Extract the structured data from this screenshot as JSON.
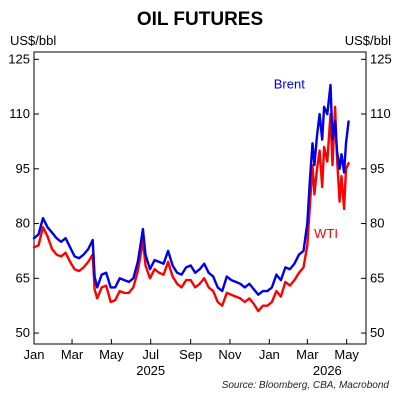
{
  "chart_data": {
    "type": "line",
    "title": "OIL FUTURES",
    "ylabel_left": "US$/bbl",
    "ylabel_right": "US$/bbl",
    "ylim": [
      47,
      127
    ],
    "yticks": [
      50,
      65,
      80,
      95,
      110,
      125
    ],
    "xlim": [
      "2025-01-01",
      "2026-05-31"
    ],
    "x_tick_labels": [
      "Jan",
      "Mar",
      "May",
      "Jul",
      "Sep",
      "Nov",
      "Jan",
      "Mar",
      "May"
    ],
    "x_tick_dates": [
      "2025-01-01",
      "2025-03-01",
      "2025-05-01",
      "2025-07-01",
      "2025-09-01",
      "2025-11-01",
      "2026-01-01",
      "2026-03-01",
      "2026-05-01"
    ],
    "year_labels": [
      {
        "text": "2025",
        "at": "2025-07-01"
      },
      {
        "text": "2026",
        "at": "2026-04-01"
      }
    ],
    "grid": false,
    "source": "Source: Bloomberg, CBA, Macrobond",
    "series": [
      {
        "name": "Brent",
        "color": "#0000e6",
        "points": [
          [
            "2025-01-01",
            76
          ],
          [
            "2025-01-08",
            77
          ],
          [
            "2025-01-15",
            81.5
          ],
          [
            "2025-01-22",
            79
          ],
          [
            "2025-01-29",
            77.5
          ],
          [
            "2025-02-05",
            76
          ],
          [
            "2025-02-12",
            75
          ],
          [
            "2025-02-19",
            76
          ],
          [
            "2025-02-26",
            73.5
          ],
          [
            "2025-03-05",
            71
          ],
          [
            "2025-03-12",
            70.5
          ],
          [
            "2025-03-19",
            71.5
          ],
          [
            "2025-03-26",
            73
          ],
          [
            "2025-04-02",
            75.5
          ],
          [
            "2025-04-05",
            65.5
          ],
          [
            "2025-04-09",
            62.5
          ],
          [
            "2025-04-16",
            66
          ],
          [
            "2025-04-23",
            66.5
          ],
          [
            "2025-04-30",
            62.5
          ],
          [
            "2025-05-07",
            62.5
          ],
          [
            "2025-05-14",
            65
          ],
          [
            "2025-05-21",
            64.5
          ],
          [
            "2025-05-28",
            64
          ],
          [
            "2025-06-04",
            65
          ],
          [
            "2025-06-11",
            69.5
          ],
          [
            "2025-06-16",
            75
          ],
          [
            "2025-06-19",
            78.5
          ],
          [
            "2025-06-23",
            71.5
          ],
          [
            "2025-06-30",
            67.5
          ],
          [
            "2025-07-07",
            70
          ],
          [
            "2025-07-14",
            69.5
          ],
          [
            "2025-07-21",
            69
          ],
          [
            "2025-07-28",
            72.5
          ],
          [
            "2025-08-04",
            68.5
          ],
          [
            "2025-08-11",
            66.5
          ],
          [
            "2025-08-18",
            66
          ],
          [
            "2025-08-25",
            68
          ],
          [
            "2025-09-01",
            68.5
          ],
          [
            "2025-09-08",
            66.5
          ],
          [
            "2025-09-15",
            67.5
          ],
          [
            "2025-09-22",
            69
          ],
          [
            "2025-09-29",
            66.5
          ],
          [
            "2025-10-06",
            65.5
          ],
          [
            "2025-10-13",
            62.5
          ],
          [
            "2025-10-20",
            61.5
          ],
          [
            "2025-10-27",
            65.5
          ],
          [
            "2025-11-03",
            64.5
          ],
          [
            "2025-11-10",
            64
          ],
          [
            "2025-11-17",
            63.5
          ],
          [
            "2025-11-24",
            62.5
          ],
          [
            "2025-12-01",
            63.5
          ],
          [
            "2025-12-08",
            62
          ],
          [
            "2025-12-15",
            60.5
          ],
          [
            "2025-12-22",
            61.5
          ],
          [
            "2025-12-29",
            61.5
          ],
          [
            "2026-01-05",
            62.5
          ],
          [
            "2026-01-12",
            66
          ],
          [
            "2026-01-19",
            64.5
          ],
          [
            "2026-01-26",
            68
          ],
          [
            "2026-02-02",
            67.5
          ],
          [
            "2026-02-09",
            69
          ],
          [
            "2026-02-16",
            71.5
          ],
          [
            "2026-02-23",
            72.5
          ],
          [
            "2026-03-01",
            80
          ],
          [
            "2026-03-05",
            92
          ],
          [
            "2026-03-09",
            102
          ],
          [
            "2026-03-12",
            96
          ],
          [
            "2026-03-16",
            104
          ],
          [
            "2026-03-20",
            110
          ],
          [
            "2026-03-24",
            103
          ],
          [
            "2026-03-27",
            112
          ],
          [
            "2026-04-01",
            110
          ],
          [
            "2026-04-06",
            118
          ],
          [
            "2026-04-09",
            103
          ],
          [
            "2026-04-13",
            108
          ],
          [
            "2026-04-16",
            100
          ],
          [
            "2026-04-20",
            95
          ],
          [
            "2026-04-23",
            99
          ],
          [
            "2026-04-27",
            94
          ],
          [
            "2026-04-30",
            102
          ],
          [
            "2026-05-04",
            108
          ]
        ]
      },
      {
        "name": "WTI",
        "color": "#ff0000",
        "points": [
          [
            "2025-01-01",
            73.5
          ],
          [
            "2025-01-08",
            74
          ],
          [
            "2025-01-15",
            79
          ],
          [
            "2025-01-22",
            76.5
          ],
          [
            "2025-01-29",
            73
          ],
          [
            "2025-02-05",
            71.5
          ],
          [
            "2025-02-12",
            71
          ],
          [
            "2025-02-19",
            72
          ],
          [
            "2025-02-26",
            69.5
          ],
          [
            "2025-03-05",
            67.5
          ],
          [
            "2025-03-12",
            67
          ],
          [
            "2025-03-19",
            68
          ],
          [
            "2025-03-26",
            69.5
          ],
          [
            "2025-04-02",
            71.5
          ],
          [
            "2025-04-05",
            62
          ],
          [
            "2025-04-09",
            59.5
          ],
          [
            "2025-04-16",
            62.5
          ],
          [
            "2025-04-23",
            63
          ],
          [
            "2025-04-30",
            58.5
          ],
          [
            "2025-05-07",
            59
          ],
          [
            "2025-05-14",
            61.5
          ],
          [
            "2025-05-21",
            61
          ],
          [
            "2025-05-28",
            61
          ],
          [
            "2025-06-04",
            62.5
          ],
          [
            "2025-06-11",
            67
          ],
          [
            "2025-06-16",
            72
          ],
          [
            "2025-06-19",
            75.5
          ],
          [
            "2025-06-23",
            68.5
          ],
          [
            "2025-06-30",
            65
          ],
          [
            "2025-07-07",
            67.5
          ],
          [
            "2025-07-14",
            66.5
          ],
          [
            "2025-07-21",
            66
          ],
          [
            "2025-07-28",
            69.5
          ],
          [
            "2025-08-04",
            65.5
          ],
          [
            "2025-08-11",
            63.5
          ],
          [
            "2025-08-18",
            62.5
          ],
          [
            "2025-08-25",
            64.5
          ],
          [
            "2025-09-01",
            64.5
          ],
          [
            "2025-09-08",
            62.5
          ],
          [
            "2025-09-15",
            63.5
          ],
          [
            "2025-09-22",
            65
          ],
          [
            "2025-09-29",
            62.5
          ],
          [
            "2025-10-06",
            61.5
          ],
          [
            "2025-10-13",
            58.5
          ],
          [
            "2025-10-20",
            57.5
          ],
          [
            "2025-10-27",
            61
          ],
          [
            "2025-11-03",
            60.5
          ],
          [
            "2025-11-10",
            60
          ],
          [
            "2025-11-17",
            59.5
          ],
          [
            "2025-11-24",
            58.5
          ],
          [
            "2025-12-01",
            59.5
          ],
          [
            "2025-12-08",
            58
          ],
          [
            "2025-12-15",
            56
          ],
          [
            "2025-12-22",
            57.5
          ],
          [
            "2025-12-29",
            57.5
          ],
          [
            "2026-01-05",
            58.5
          ],
          [
            "2026-01-12",
            61.5
          ],
          [
            "2026-01-19",
            60
          ],
          [
            "2026-01-26",
            64
          ],
          [
            "2026-02-02",
            63
          ],
          [
            "2026-02-09",
            64.5
          ],
          [
            "2026-02-16",
            66.5
          ],
          [
            "2026-02-23",
            68
          ],
          [
            "2026-03-01",
            74
          ],
          [
            "2026-03-05",
            85
          ],
          [
            "2026-03-09",
            96
          ],
          [
            "2026-03-12",
            88
          ],
          [
            "2026-03-16",
            95
          ],
          [
            "2026-03-20",
            100
          ],
          [
            "2026-03-24",
            90
          ],
          [
            "2026-03-27",
            101
          ],
          [
            "2026-04-01",
            97
          ],
          [
            "2026-04-06",
            110
          ],
          [
            "2026-04-09",
            96
          ],
          [
            "2026-04-13",
            112
          ],
          [
            "2026-04-16",
            98
          ],
          [
            "2026-04-20",
            86
          ],
          [
            "2026-04-23",
            93
          ],
          [
            "2026-04-27",
            84
          ],
          [
            "2026-04-30",
            95
          ],
          [
            "2026-05-04",
            96.5
          ]
        ]
      }
    ]
  }
}
